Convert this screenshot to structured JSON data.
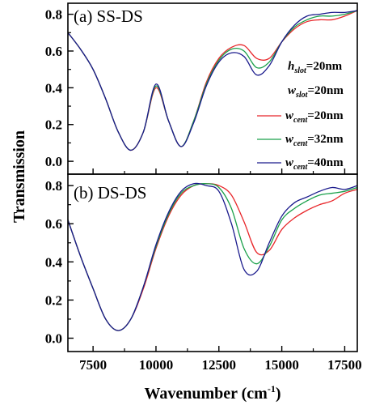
{
  "chart_data": [
    {
      "type": "line",
      "title": "(a) SS-DS",
      "xlim": [
        6500,
        18000
      ],
      "ylim": [
        -0.07,
        0.86
      ],
      "x_ticks": [
        "7500",
        "10000",
        "12500",
        "15000",
        "17500"
      ],
      "y_ticks": [
        "0.0",
        "0.2",
        "0.4",
        "0.6",
        "0.8"
      ],
      "x_tick_values": [
        7500,
        10000,
        12500,
        15000,
        17500
      ],
      "y_tick_values": [
        0.0,
        0.2,
        0.4,
        0.6,
        0.8
      ],
      "annotations": [
        {
          "var": "h",
          "sub": "slot",
          "value": "=20nm"
        },
        {
          "var": "w",
          "sub": "slot",
          "value": "=20nm"
        }
      ],
      "series": [
        {
          "name": "w_cent=20nm",
          "color": "#e8262a",
          "x": [
            6500,
            7000,
            7500,
            8000,
            8500,
            9000,
            9500,
            10000,
            10500,
            11000,
            11500,
            12000,
            12500,
            13000,
            13500,
            14000,
            14500,
            15000,
            15500,
            16000,
            16500,
            17000,
            17500,
            18000
          ],
          "y": [
            0.7,
            0.61,
            0.5,
            0.34,
            0.16,
            0.06,
            0.16,
            0.4,
            0.22,
            0.08,
            0.22,
            0.43,
            0.56,
            0.62,
            0.63,
            0.56,
            0.56,
            0.65,
            0.72,
            0.76,
            0.77,
            0.77,
            0.79,
            0.82
          ]
        },
        {
          "name": "w_cent=32nm",
          "color": "#1aa04a",
          "x": [
            6500,
            7000,
            7500,
            8000,
            8500,
            9000,
            9500,
            10000,
            10500,
            11000,
            11500,
            12000,
            12500,
            13000,
            13500,
            14000,
            14500,
            15000,
            15500,
            16000,
            16500,
            17000,
            17500,
            18000
          ],
          "y": [
            0.7,
            0.61,
            0.5,
            0.34,
            0.16,
            0.06,
            0.16,
            0.41,
            0.22,
            0.08,
            0.22,
            0.42,
            0.55,
            0.61,
            0.6,
            0.51,
            0.54,
            0.65,
            0.73,
            0.77,
            0.79,
            0.79,
            0.8,
            0.82
          ]
        },
        {
          "name": "w_cent=40nm",
          "color": "#1a1a8c",
          "x": [
            6500,
            7000,
            7500,
            8000,
            8500,
            9000,
            9500,
            10000,
            10500,
            11000,
            11500,
            12000,
            12500,
            13000,
            13500,
            14000,
            14500,
            15000,
            15500,
            16000,
            16500,
            17000,
            17500,
            18000
          ],
          "y": [
            0.7,
            0.61,
            0.5,
            0.34,
            0.16,
            0.06,
            0.16,
            0.42,
            0.22,
            0.08,
            0.21,
            0.41,
            0.54,
            0.59,
            0.57,
            0.47,
            0.52,
            0.65,
            0.74,
            0.79,
            0.8,
            0.81,
            0.81,
            0.82
          ]
        }
      ]
    },
    {
      "type": "line",
      "title": "(b) DS-DS",
      "xlim": [
        6500,
        18000
      ],
      "ylim": [
        -0.07,
        0.86
      ],
      "x_ticks": [
        "7500",
        "10000",
        "12500",
        "15000",
        "17500"
      ],
      "y_ticks": [
        "0.0",
        "0.2",
        "0.4",
        "0.6",
        "0.8"
      ],
      "x_tick_values": [
        7500,
        10000,
        12500,
        15000,
        17500
      ],
      "y_tick_values": [
        0.0,
        0.2,
        0.4,
        0.6,
        0.8
      ],
      "series": [
        {
          "name": "w_cent=20nm",
          "color": "#e8262a",
          "x": [
            6500,
            7000,
            7500,
            8000,
            8500,
            9000,
            9500,
            10000,
            10500,
            11000,
            11500,
            12000,
            12500,
            13000,
            13500,
            14000,
            14500,
            15000,
            15500,
            16000,
            16500,
            17000,
            17500,
            18000
          ],
          "y": [
            0.62,
            0.43,
            0.26,
            0.1,
            0.04,
            0.1,
            0.26,
            0.47,
            0.64,
            0.75,
            0.8,
            0.81,
            0.8,
            0.75,
            0.61,
            0.45,
            0.46,
            0.57,
            0.63,
            0.67,
            0.7,
            0.72,
            0.76,
            0.78
          ]
        },
        {
          "name": "w_cent=32nm",
          "color": "#1aa04a",
          "x": [
            6500,
            7000,
            7500,
            8000,
            8500,
            9000,
            9500,
            10000,
            10500,
            11000,
            11500,
            12000,
            12500,
            13000,
            13500,
            14000,
            14500,
            15000,
            15500,
            16000,
            16500,
            17000,
            17500,
            18000
          ],
          "y": [
            0.62,
            0.43,
            0.26,
            0.1,
            0.04,
            0.1,
            0.27,
            0.48,
            0.65,
            0.76,
            0.8,
            0.81,
            0.79,
            0.68,
            0.47,
            0.39,
            0.48,
            0.62,
            0.68,
            0.72,
            0.75,
            0.76,
            0.77,
            0.79
          ]
        },
        {
          "name": "w_cent=40nm",
          "color": "#1a1a8c",
          "x": [
            6500,
            7000,
            7500,
            8000,
            8500,
            9000,
            9500,
            10000,
            10500,
            11000,
            11500,
            12000,
            12500,
            13000,
            13500,
            14000,
            14500,
            15000,
            15500,
            16000,
            16500,
            17000,
            17500,
            18000
          ],
          "y": [
            0.62,
            0.43,
            0.26,
            0.1,
            0.04,
            0.1,
            0.27,
            0.49,
            0.66,
            0.77,
            0.81,
            0.8,
            0.77,
            0.6,
            0.36,
            0.35,
            0.5,
            0.64,
            0.71,
            0.74,
            0.77,
            0.79,
            0.78,
            0.8
          ]
        }
      ]
    }
  ],
  "legend": {
    "placement": "right, inside panel (a), spilling into panel (b)",
    "entries": [
      {
        "var": "w",
        "sub": "cent",
        "value": "=20nm",
        "color": "#e8262a"
      },
      {
        "var": "w",
        "sub": "cent",
        "value": "=32nm",
        "color": "#1aa04a"
      },
      {
        "var": "w",
        "sub": "cent",
        "value": "=40nm",
        "color": "#1a1a8c"
      }
    ]
  },
  "ylabel": "Transmission",
  "xlabel": {
    "main": "Wavenumber (cm",
    "sup": "-1",
    "close": ")"
  }
}
